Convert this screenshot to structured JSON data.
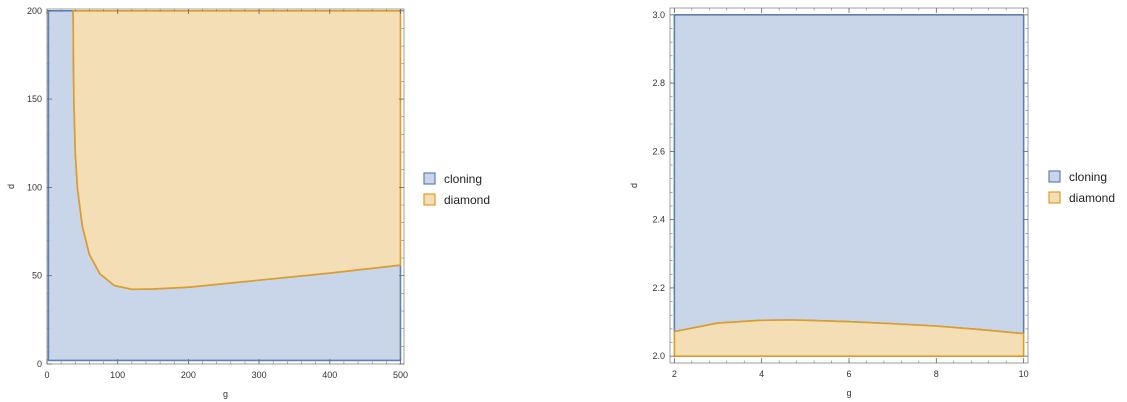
{
  "chart_data": [
    {
      "type": "area",
      "xlabel": "g",
      "ylabel": "d",
      "xlim": [
        0,
        505
      ],
      "ylim": [
        0,
        201
      ],
      "xticks": [
        0,
        100,
        200,
        300,
        400,
        500
      ],
      "xtick_labels": [
        "0",
        "100",
        "200",
        "300",
        "400",
        "500"
      ],
      "yticks": [
        0,
        50,
        100,
        150,
        200
      ],
      "ytick_labels": [
        "0",
        "50",
        "100",
        "150",
        "200"
      ],
      "grid": false,
      "legend_position": "right",
      "domain": {
        "x": [
          2,
          500
        ],
        "y": [
          2,
          200
        ]
      },
      "series": [
        {
          "name": "cloning",
          "color": "#5e81b5",
          "fill": "#c9d6e9",
          "boundary": [
            [
              2,
              2
            ],
            [
              2,
              200
            ],
            [
              37,
              200
            ],
            [
              37.3,
              180
            ],
            [
              38,
              150
            ],
            [
              40,
              120
            ],
            [
              43,
              100
            ],
            [
              50,
              78
            ],
            [
              60,
              62
            ],
            [
              75,
              51
            ],
            [
              95,
              44.5
            ],
            [
              120,
              42.3
            ],
            [
              150,
              42.5
            ],
            [
              200,
              43.5
            ],
            [
              300,
              47.5
            ],
            [
              400,
              51.5
            ],
            [
              500,
              56
            ],
            [
              500,
              2
            ]
          ]
        },
        {
          "name": "diamond",
          "color": "#e19c24",
          "fill": "#f3deb5",
          "boundary": [
            [
              37,
              200
            ],
            [
              37.3,
              180
            ],
            [
              38,
              150
            ],
            [
              40,
              120
            ],
            [
              43,
              100
            ],
            [
              50,
              78
            ],
            [
              60,
              62
            ],
            [
              75,
              51
            ],
            [
              95,
              44.5
            ],
            [
              120,
              42.3
            ],
            [
              150,
              42.5
            ],
            [
              200,
              43.5
            ],
            [
              300,
              47.5
            ],
            [
              400,
              51.5
            ],
            [
              500,
              56
            ],
            [
              500,
              200
            ]
          ]
        }
      ]
    },
    {
      "type": "area",
      "xlabel": "g",
      "ylabel": "d",
      "xlim": [
        1.9,
        10.1
      ],
      "ylim": [
        1.98,
        3.02
      ],
      "xticks": [
        2,
        4,
        6,
        8,
        10
      ],
      "xtick_labels": [
        "2",
        "4",
        "6",
        "8",
        "10"
      ],
      "yticks": [
        2.0,
        2.2,
        2.4,
        2.6,
        2.8,
        3.0
      ],
      "ytick_labels": [
        "2.0",
        "2.2",
        "2.4",
        "2.6",
        "2.8",
        "3.0"
      ],
      "grid": false,
      "legend_position": "right",
      "domain": {
        "x": [
          2,
          10
        ],
        "y": [
          2,
          3
        ]
      },
      "series": [
        {
          "name": "cloning",
          "color": "#5e81b5",
          "fill": "#c9d6e9",
          "boundary": [
            [
              2,
              2.072
            ],
            [
              3,
              2.097
            ],
            [
              4,
              2.105
            ],
            [
              4.6,
              2.106
            ],
            [
              5,
              2.105
            ],
            [
              6,
              2.101
            ],
            [
              7,
              2.095
            ],
            [
              8,
              2.088
            ],
            [
              9,
              2.078
            ],
            [
              10,
              2.066
            ],
            [
              10,
              3
            ],
            [
              2,
              3
            ]
          ]
        },
        {
          "name": "diamond",
          "color": "#e19c24",
          "fill": "#f3deb5",
          "boundary": [
            [
              2,
              2
            ],
            [
              2,
              2.072
            ],
            [
              3,
              2.097
            ],
            [
              4,
              2.105
            ],
            [
              4.6,
              2.106
            ],
            [
              5,
              2.105
            ],
            [
              6,
              2.101
            ],
            [
              7,
              2.095
            ],
            [
              8,
              2.088
            ],
            [
              9,
              2.078
            ],
            [
              10,
              2.066
            ],
            [
              10,
              2
            ]
          ]
        }
      ]
    }
  ]
}
